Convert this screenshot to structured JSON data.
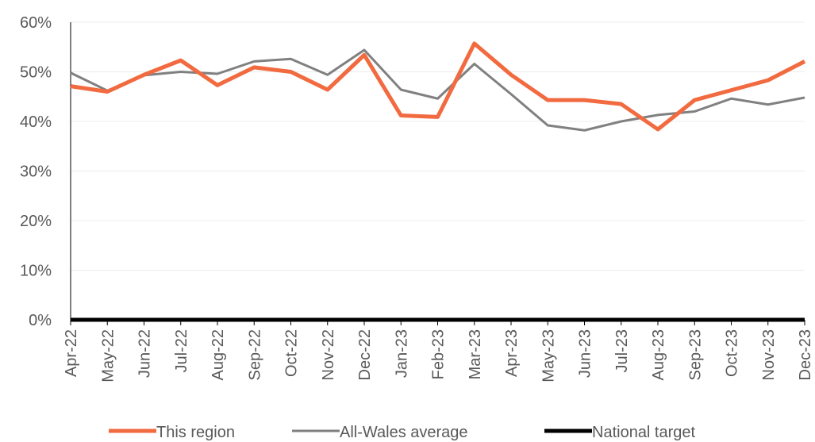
{
  "chart_data": {
    "type": "line",
    "categories": [
      "Apr-22",
      "May-22",
      "Jun-22",
      "Jul-22",
      "Aug-22",
      "Sep-22",
      "Oct-22",
      "Nov-22",
      "Dec-22",
      "Jan-23",
      "Feb-23",
      "Mar-23",
      "Apr-23",
      "May-23",
      "Jun-23",
      "Jul-23",
      "Aug-23",
      "Sep-23",
      "Oct-23",
      "Nov-23",
      "Dec-23"
    ],
    "series": [
      {
        "name": "This region",
        "color": "#f26a3f",
        "values": [
          47.1,
          46.0,
          49.4,
          52.3,
          47.3,
          50.9,
          50.0,
          46.4,
          53.4,
          41.2,
          40.9,
          55.7,
          49.4,
          44.3,
          44.3,
          43.5,
          38.4,
          44.3,
          46.3,
          48.3,
          52.1
        ]
      },
      {
        "name": "All-Wales average",
        "color": "#808080",
        "values": [
          49.8,
          46.2,
          49.3,
          50.0,
          49.6,
          52.1,
          52.6,
          49.4,
          54.4,
          46.4,
          44.6,
          51.6,
          45.5,
          39.2,
          38.2,
          40.0,
          41.3,
          42.0,
          44.6,
          43.4,
          44.8
        ]
      },
      {
        "name": "National target",
        "color": "#000000",
        "values": [
          0,
          0,
          0,
          0,
          0,
          0,
          0,
          0,
          0,
          0,
          0,
          0,
          0,
          0,
          0,
          0,
          0,
          0,
          0,
          0,
          0
        ]
      }
    ],
    "ylim": [
      0,
      60
    ],
    "yticks": [
      {
        "value": 0,
        "label": "0%"
      },
      {
        "value": 10,
        "label": "10%"
      },
      {
        "value": 20,
        "label": "20%"
      },
      {
        "value": 30,
        "label": "30%"
      },
      {
        "value": 40,
        "label": "40%"
      },
      {
        "value": 50,
        "label": "50%"
      },
      {
        "value": 60,
        "label": "60%"
      }
    ],
    "grid": true,
    "legend": "bottom"
  }
}
